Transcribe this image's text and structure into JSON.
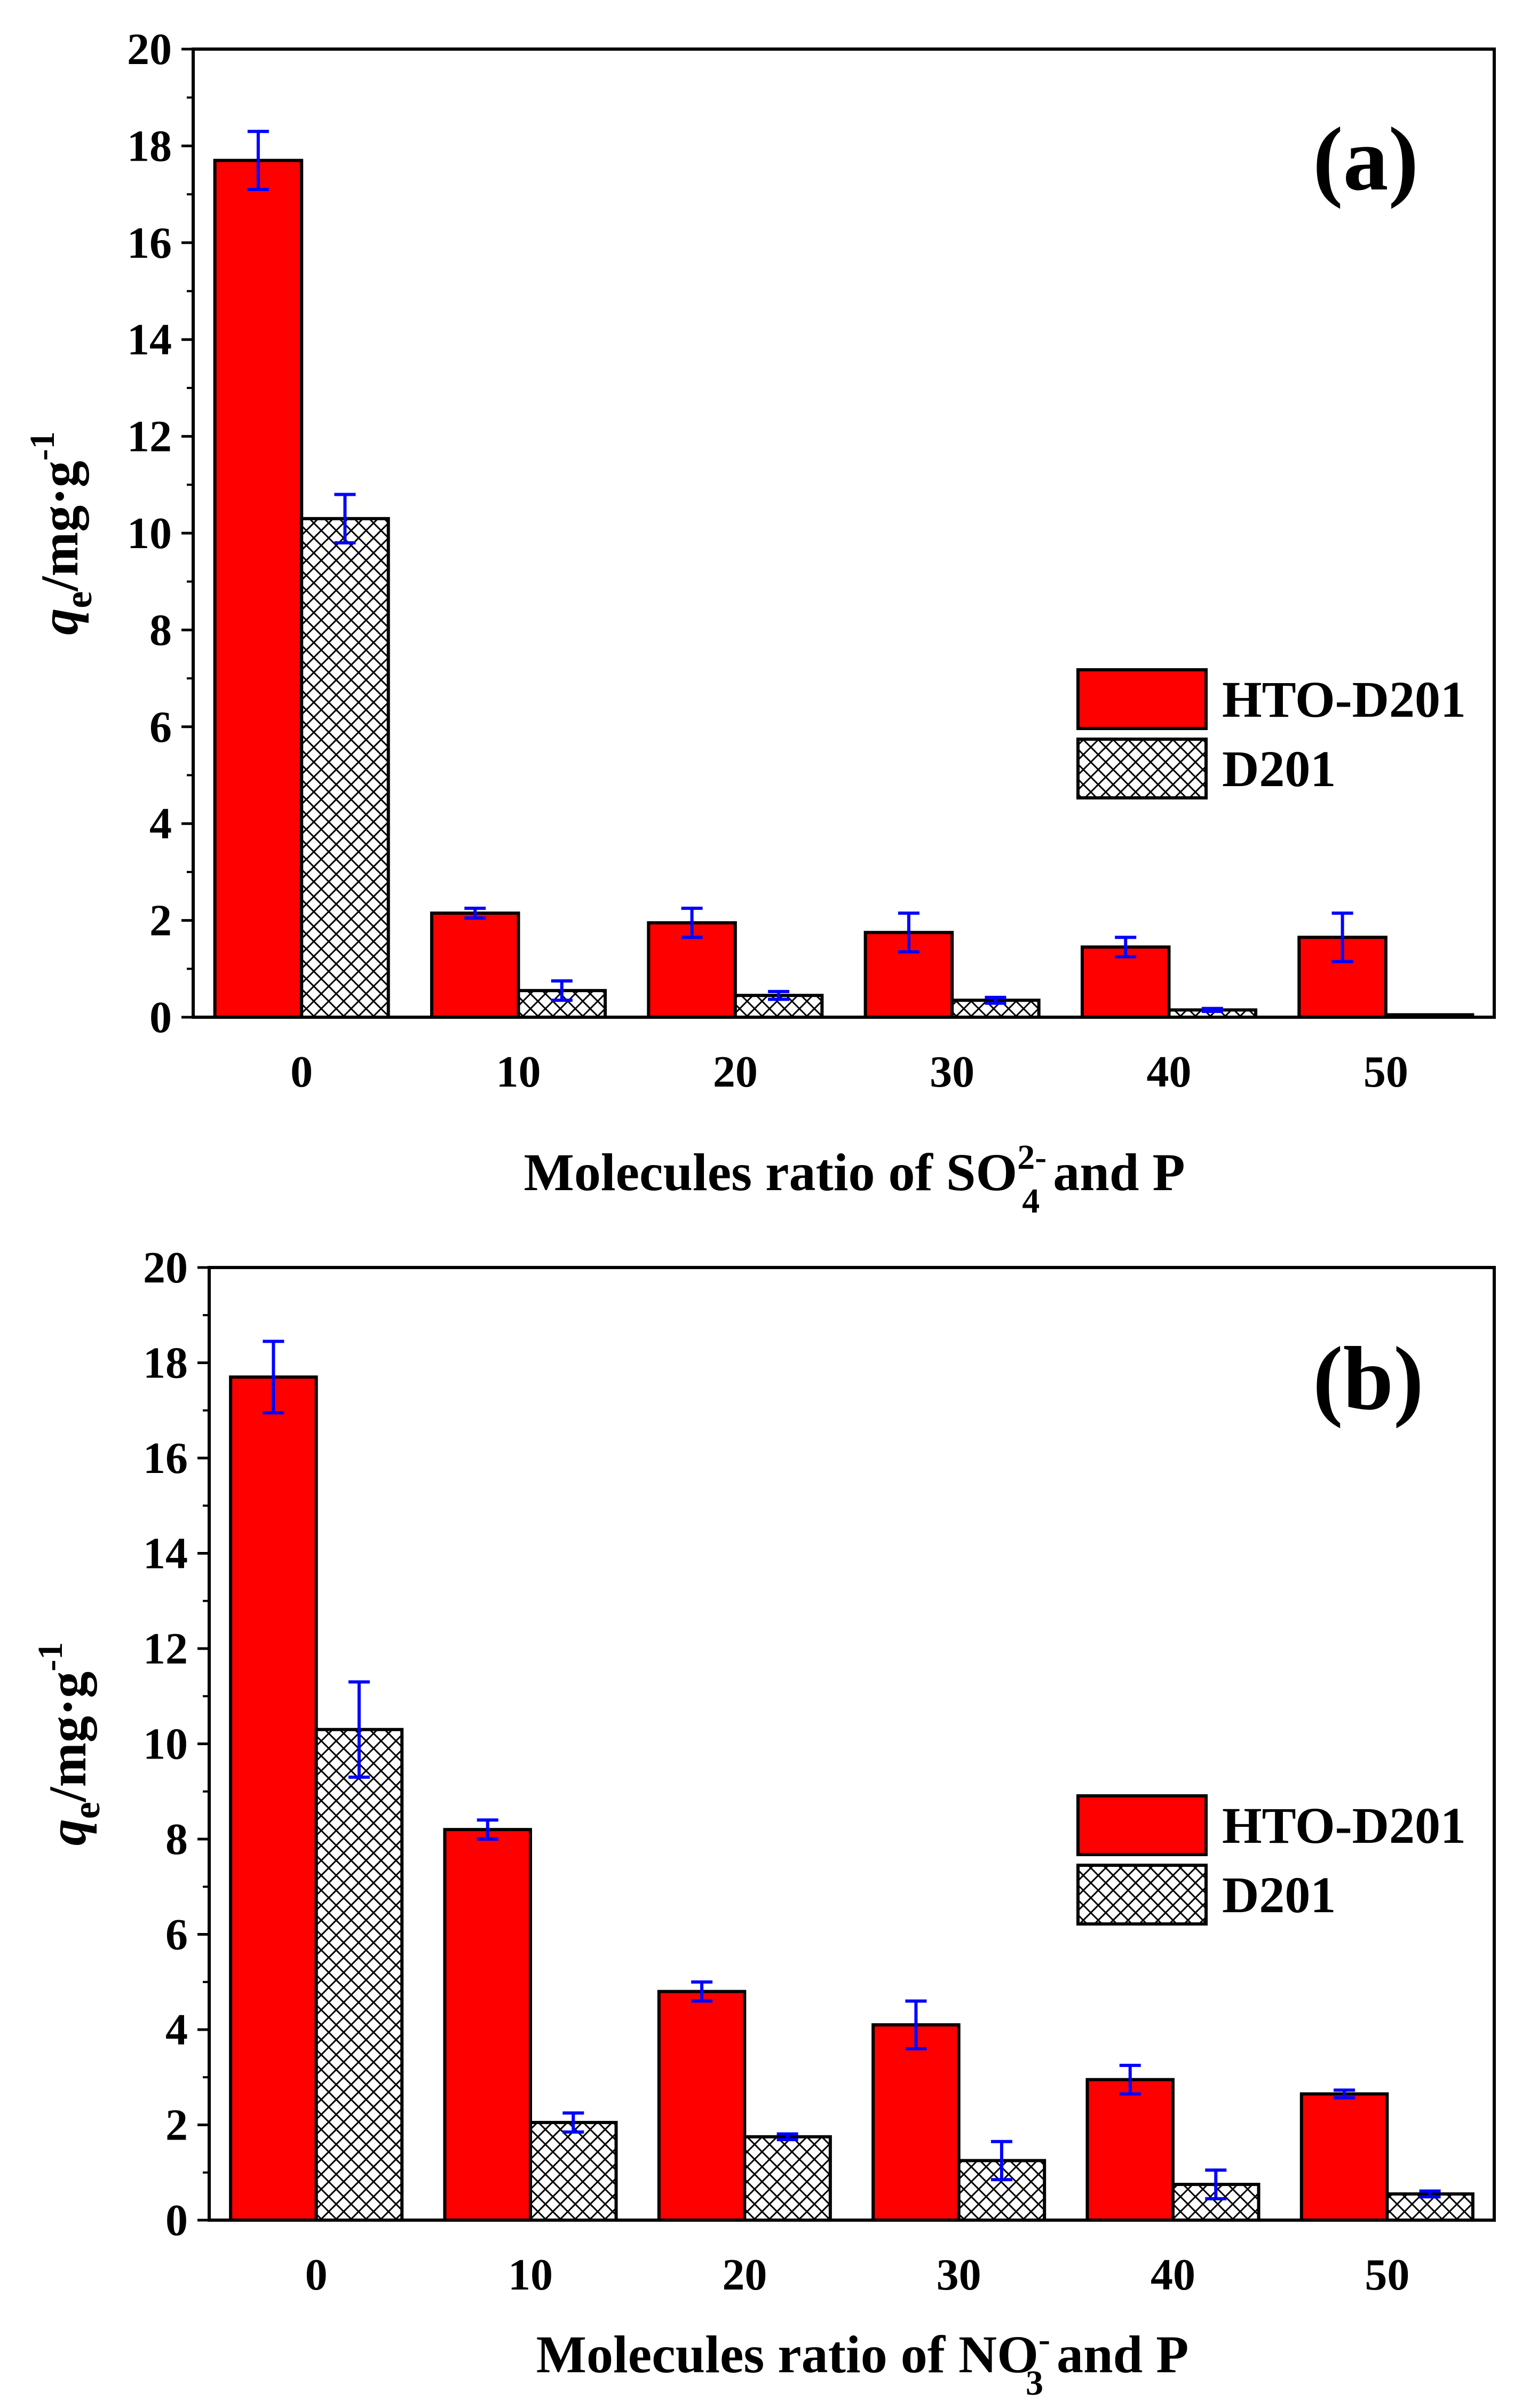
{
  "colors": {
    "hto": "#ff0000",
    "d201_fill": "#ffffff",
    "error_bar": "#0000ff",
    "axis": "#000000"
  },
  "chart_data": [
    {
      "type": "bar",
      "panel_label": "(a)",
      "categories": [
        "0",
        "10",
        "20",
        "30",
        "40",
        "50"
      ],
      "series": [
        {
          "name": "HTO-D201",
          "values": [
            17.7,
            2.15,
            1.95,
            1.75,
            1.45,
            1.65
          ],
          "errors": [
            0.6,
            0.1,
            0.3,
            0.4,
            0.2,
            0.5
          ]
        },
        {
          "name": "D201",
          "values": [
            10.3,
            0.55,
            0.45,
            0.35,
            0.15,
            0.05
          ],
          "errors": [
            0.5,
            0.2,
            0.08,
            0.06,
            0.03,
            0.0
          ]
        }
      ],
      "xlabel": {
        "pre": "Molecules ratio of SO",
        "sub": "4",
        "sup": "2-",
        "post": " and P"
      },
      "ylabel": {
        "main": "q",
        "sub": "e",
        "unit": "/mg·g",
        "sup": "-1"
      },
      "ylim": [
        0,
        20
      ],
      "yticks": [
        "0",
        "2",
        "4",
        "6",
        "8",
        "10",
        "12",
        "14",
        "16",
        "18",
        "20"
      ],
      "legend_position": "right"
    },
    {
      "type": "bar",
      "panel_label": "(b)",
      "categories": [
        "0",
        "10",
        "20",
        "30",
        "40",
        "50"
      ],
      "series": [
        {
          "name": "HTO-D201",
          "values": [
            17.7,
            8.2,
            4.8,
            4.1,
            2.95,
            2.65
          ],
          "errors": [
            0.75,
            0.2,
            0.2,
            0.5,
            0.3,
            0.08
          ]
        },
        {
          "name": "D201",
          "values": [
            10.3,
            2.05,
            1.75,
            1.25,
            0.75,
            0.55
          ],
          "errors": [
            1.0,
            0.2,
            0.06,
            0.4,
            0.3,
            0.06
          ]
        }
      ],
      "xlabel": {
        "pre": "Molecules ratio of NO",
        "sub": "3",
        "sup": "-",
        "post": " and P"
      },
      "ylabel": {
        "main": "q",
        "sub": "e",
        "unit": "/mg·g",
        "sup": "-1"
      },
      "ylim": [
        0,
        20
      ],
      "yticks": [
        "0",
        "2",
        "4",
        "6",
        "8",
        "10",
        "12",
        "14",
        "16",
        "18",
        "20"
      ],
      "legend_position": "right"
    }
  ]
}
